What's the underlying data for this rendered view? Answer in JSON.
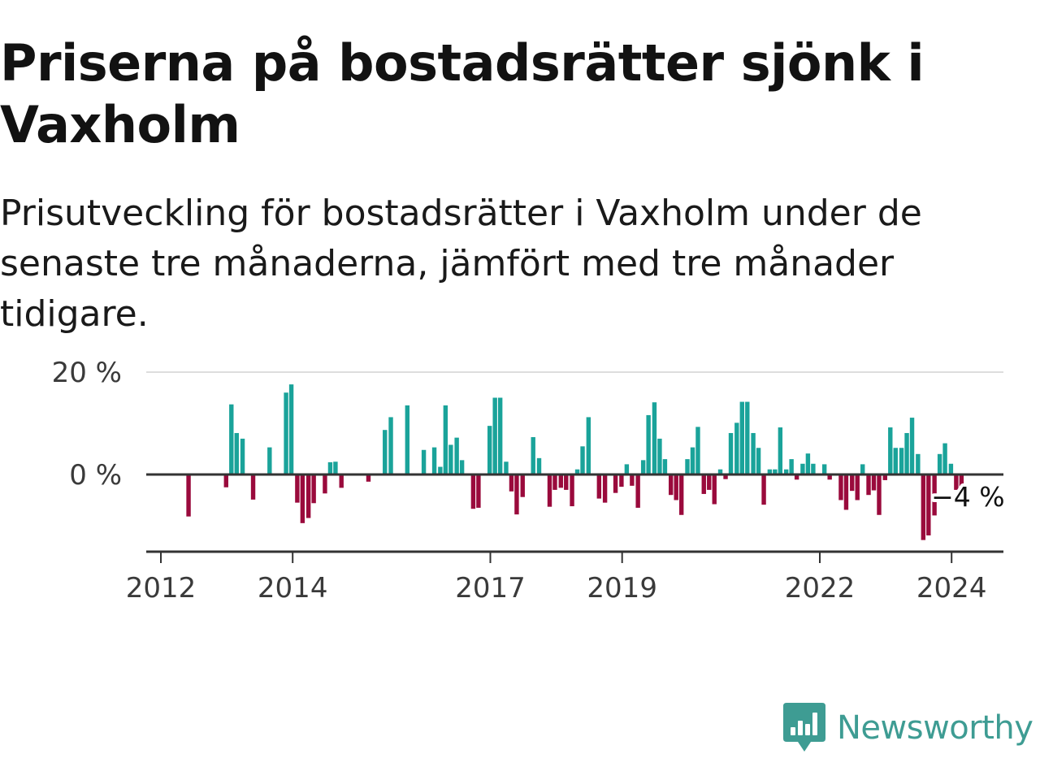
{
  "title": "Priserna på bostadsrätter sjönk i Vaxholm",
  "subtitle": "Prisutveckling för bostadsrätter i Vaxholm under de senaste tre månaderna, jämfört med tre månader tidigare.",
  "brand": {
    "name": "Newsworthy",
    "icon": "newsworthy-logo-icon",
    "color": "#3e9c93"
  },
  "colors": {
    "positive": "#1aa39a",
    "negative": "#9a0a3c",
    "grid": "#dddddd",
    "axis": "#333333"
  },
  "chart_data": {
    "type": "bar",
    "title": "Priserna på bostadsrätter sjönk i Vaxholm",
    "xlabel": "",
    "ylabel": "",
    "ylim": [
      -15,
      20
    ],
    "y_ticks": [
      {
        "value": 20,
        "label": "20 %"
      },
      {
        "value": 0,
        "label": "0 %"
      }
    ],
    "x_ticks": [
      {
        "value": 2012.0,
        "label": "2012"
      },
      {
        "value": 2014.0,
        "label": "2014"
      },
      {
        "value": 2017.0,
        "label": "2017"
      },
      {
        "value": 2019.0,
        "label": "2019"
      },
      {
        "value": 2022.0,
        "label": "2022"
      },
      {
        "value": 2024.0,
        "label": "2024"
      }
    ],
    "grid": "horizontal",
    "annotation": {
      "x": 2023.79,
      "value": -4,
      "label": "−4 %"
    },
    "series": [
      {
        "values": [
          [
            2012.42,
            -8.2
          ],
          [
            2012.99,
            -2.5
          ],
          [
            2013.07,
            13.7
          ],
          [
            2013.15,
            8.1
          ],
          [
            2013.24,
            7.0
          ],
          [
            2013.4,
            -4.9
          ],
          [
            2013.65,
            5.3
          ],
          [
            2013.9,
            16.0
          ],
          [
            2013.98,
            17.6
          ],
          [
            2014.07,
            -5.5
          ],
          [
            2014.15,
            -9.5
          ],
          [
            2014.24,
            -8.5
          ],
          [
            2014.32,
            -5.6
          ],
          [
            2014.49,
            -3.7
          ],
          [
            2014.57,
            2.4
          ],
          [
            2014.65,
            2.5
          ],
          [
            2014.74,
            -2.6
          ],
          [
            2015.15,
            -1.4
          ],
          [
            2015.4,
            8.7
          ],
          [
            2015.49,
            11.2
          ],
          [
            2015.74,
            13.5
          ],
          [
            2015.99,
            4.8
          ],
          [
            2016.15,
            5.3
          ],
          [
            2016.24,
            1.5
          ],
          [
            2016.32,
            13.5
          ],
          [
            2016.4,
            5.8
          ],
          [
            2016.49,
            7.2
          ],
          [
            2016.57,
            2.8
          ],
          [
            2016.74,
            -6.7
          ],
          [
            2016.82,
            -6.5
          ],
          [
            2016.99,
            9.5
          ],
          [
            2017.07,
            15.0
          ],
          [
            2017.15,
            15.0
          ],
          [
            2017.24,
            2.5
          ],
          [
            2017.32,
            -3.3
          ],
          [
            2017.4,
            -7.8
          ],
          [
            2017.49,
            -4.4
          ],
          [
            2017.65,
            7.3
          ],
          [
            2017.74,
            3.2
          ],
          [
            2017.9,
            -6.3
          ],
          [
            2017.98,
            -3.0
          ],
          [
            2018.07,
            -2.6
          ],
          [
            2018.15,
            -3.0
          ],
          [
            2018.24,
            -6.2
          ],
          [
            2018.32,
            1.0
          ],
          [
            2018.4,
            5.5
          ],
          [
            2018.49,
            11.2
          ],
          [
            2018.65,
            -4.7
          ],
          [
            2018.74,
            -5.5
          ],
          [
            2018.9,
            -3.6
          ],
          [
            2018.99,
            -2.4
          ],
          [
            2019.07,
            2.0
          ],
          [
            2019.15,
            -2.2
          ],
          [
            2019.24,
            -6.5
          ],
          [
            2019.32,
            2.8
          ],
          [
            2019.4,
            11.6
          ],
          [
            2019.49,
            14.1
          ],
          [
            2019.57,
            7.0
          ],
          [
            2019.65,
            3.0
          ],
          [
            2019.74,
            -4.0
          ],
          [
            2019.82,
            -5.0
          ],
          [
            2019.9,
            -7.9
          ],
          [
            2019.99,
            3.0
          ],
          [
            2020.07,
            5.3
          ],
          [
            2020.15,
            9.3
          ],
          [
            2020.24,
            -3.8
          ],
          [
            2020.32,
            -3.0
          ],
          [
            2020.4,
            -5.8
          ],
          [
            2020.49,
            1.0
          ],
          [
            2020.57,
            -0.9
          ],
          [
            2020.65,
            8.1
          ],
          [
            2020.74,
            10.1
          ],
          [
            2020.82,
            14.2
          ],
          [
            2020.9,
            14.2
          ],
          [
            2020.99,
            8.1
          ],
          [
            2021.07,
            5.2
          ],
          [
            2021.15,
            -5.9
          ],
          [
            2021.24,
            1.0
          ],
          [
            2021.32,
            1.0
          ],
          [
            2021.4,
            9.2
          ],
          [
            2021.49,
            1.0
          ],
          [
            2021.57,
            3.0
          ],
          [
            2021.65,
            -1.0
          ],
          [
            2021.74,
            2.1
          ],
          [
            2021.82,
            4.1
          ],
          [
            2021.9,
            2.1
          ],
          [
            2022.07,
            2.0
          ],
          [
            2022.15,
            -1.0
          ],
          [
            2022.32,
            -5.0
          ],
          [
            2022.4,
            -6.9
          ],
          [
            2022.49,
            -3.2
          ],
          [
            2022.57,
            -5.0
          ],
          [
            2022.65,
            2.0
          ],
          [
            2022.74,
            -4.0
          ],
          [
            2022.82,
            -3.1
          ],
          [
            2022.9,
            -7.9
          ],
          [
            2022.99,
            -1.1
          ],
          [
            2023.07,
            9.2
          ],
          [
            2023.15,
            5.2
          ],
          [
            2023.24,
            5.2
          ],
          [
            2023.32,
            8.1
          ],
          [
            2023.4,
            11.1
          ],
          [
            2023.49,
            4.0
          ],
          [
            2023.57,
            -12.8
          ],
          [
            2023.65,
            -11.9
          ],
          [
            2023.74,
            -8.0
          ],
          [
            2023.82,
            4.0
          ],
          [
            2023.9,
            6.1
          ],
          [
            2023.99,
            2.1
          ],
          [
            2024.07,
            -3.0
          ],
          [
            2024.15,
            -4.0
          ]
        ]
      }
    ]
  }
}
